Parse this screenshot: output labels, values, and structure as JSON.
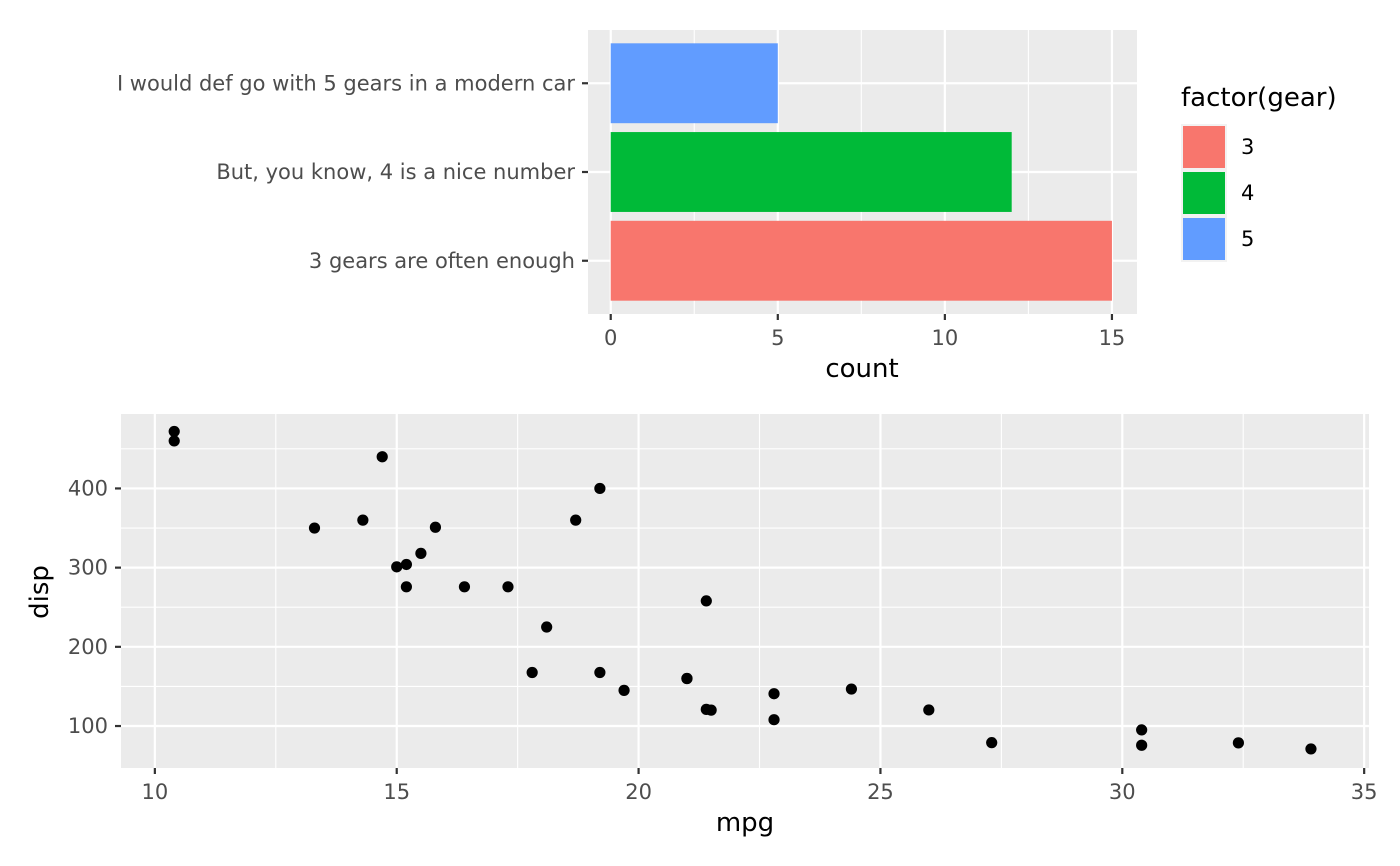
{
  "chart_data": [
    {
      "type": "bar",
      "orientation": "horizontal",
      "title": "",
      "xlabel": "count",
      "ylabel": "",
      "xlim": [
        -0.68,
        15.75
      ],
      "x_ticks": [
        {
          "value": 0,
          "label": "0"
        },
        {
          "value": 5,
          "label": "5"
        },
        {
          "value": 10,
          "label": "10"
        },
        {
          "value": 15,
          "label": "15"
        }
      ],
      "x_minor_ticks": [
        2.5,
        7.5,
        12.5
      ],
      "categories": [
        "3 gears are often enough",
        "But, you know, 4 is a nice number",
        "I would def go with 5 gears in a modern car"
      ],
      "values": [
        15,
        12,
        5
      ],
      "fill_group": [
        "3",
        "4",
        "5"
      ],
      "grid": true,
      "legend": {
        "title": "factor(gear)",
        "position": "right",
        "entries": [
          {
            "label": "3",
            "color": "#F8766D"
          },
          {
            "label": "4",
            "color": "#00BA38"
          },
          {
            "label": "5",
            "color": "#619CFF"
          }
        ]
      }
    },
    {
      "type": "scatter",
      "title": "",
      "xlabel": "mpg",
      "ylabel": "disp",
      "xlim": [
        9.3,
        35.1
      ],
      "ylim": [
        47,
        494
      ],
      "x_ticks": [
        {
          "value": 10,
          "label": "10"
        },
        {
          "value": 15,
          "label": "15"
        },
        {
          "value": 20,
          "label": "20"
        },
        {
          "value": 25,
          "label": "25"
        },
        {
          "value": 30,
          "label": "30"
        },
        {
          "value": 35,
          "label": "35"
        }
      ],
      "x_minor_ticks": [
        12.5,
        17.5,
        22.5,
        27.5,
        32.5
      ],
      "y_ticks": [
        {
          "value": 100,
          "label": "100"
        },
        {
          "value": 200,
          "label": "200"
        },
        {
          "value": 300,
          "label": "300"
        },
        {
          "value": 400,
          "label": "400"
        }
      ],
      "y_minor_ticks": [
        150,
        250,
        350,
        450
      ],
      "grid": true,
      "point_color": "#000000",
      "points": [
        {
          "x": 21.0,
          "y": 160
        },
        {
          "x": 21.0,
          "y": 160
        },
        {
          "x": 22.8,
          "y": 108
        },
        {
          "x": 21.4,
          "y": 258
        },
        {
          "x": 18.7,
          "y": 360
        },
        {
          "x": 18.1,
          "y": 225
        },
        {
          "x": 14.3,
          "y": 360
        },
        {
          "x": 24.4,
          "y": 146.7
        },
        {
          "x": 22.8,
          "y": 140.8
        },
        {
          "x": 19.2,
          "y": 167.6
        },
        {
          "x": 17.8,
          "y": 167.6
        },
        {
          "x": 16.4,
          "y": 275.8
        },
        {
          "x": 17.3,
          "y": 275.8
        },
        {
          "x": 15.2,
          "y": 275.8
        },
        {
          "x": 10.4,
          "y": 472
        },
        {
          "x": 10.4,
          "y": 460
        },
        {
          "x": 14.7,
          "y": 440
        },
        {
          "x": 32.4,
          "y": 78.7
        },
        {
          "x": 30.4,
          "y": 75.7
        },
        {
          "x": 33.9,
          "y": 71.1
        },
        {
          "x": 21.5,
          "y": 120.1
        },
        {
          "x": 15.5,
          "y": 318
        },
        {
          "x": 15.2,
          "y": 304
        },
        {
          "x": 13.3,
          "y": 350
        },
        {
          "x": 19.2,
          "y": 400
        },
        {
          "x": 27.3,
          "y": 79
        },
        {
          "x": 26.0,
          "y": 120.3
        },
        {
          "x": 30.4,
          "y": 95.1
        },
        {
          "x": 15.8,
          "y": 351
        },
        {
          "x": 19.7,
          "y": 145
        },
        {
          "x": 15.0,
          "y": 301
        },
        {
          "x": 21.4,
          "y": 121
        }
      ]
    }
  ]
}
